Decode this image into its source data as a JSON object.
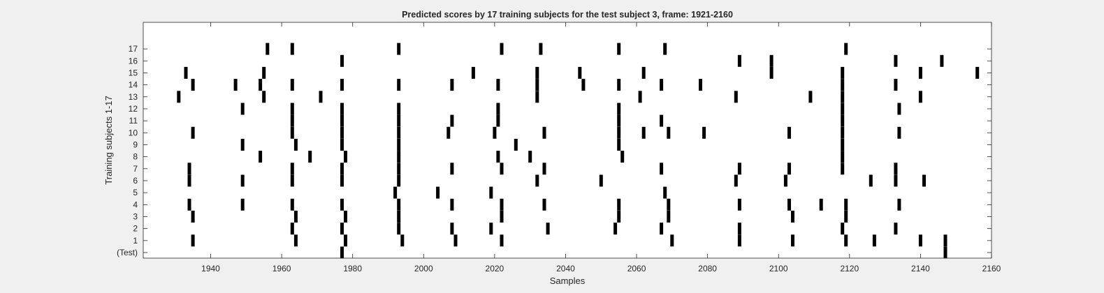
{
  "chart_data": {
    "type": "scatter",
    "marker": "vertical-bar",
    "title": "Predicted scores by 17 training subjects for the test subject 3, frame: 1921-2160",
    "xlabel": "Samples",
    "ylabel": "Training subjects 1-17",
    "xlim": [
      1921,
      2160
    ],
    "xticks": [
      1940,
      1960,
      1980,
      2000,
      2020,
      2040,
      2060,
      2080,
      2100,
      2120,
      2140,
      2160
    ],
    "xtick_labels": [
      "1940",
      "1960",
      "1980",
      "2000",
      "2020",
      "2040",
      "2060",
      "2080",
      "2100",
      "2120",
      "2140",
      "2160"
    ],
    "yticks": [
      "(Test)",
      "1",
      "2",
      "3",
      "4",
      "5",
      "6",
      "7",
      "8",
      "9",
      "10",
      "11",
      "12",
      "13",
      "14",
      "15",
      "16",
      "17"
    ],
    "grid": false,
    "mark_color": "#000000",
    "rows": [
      {
        "label": "(Test)",
        "x": [
          1977,
          2147
        ]
      },
      {
        "label": "1",
        "x": [
          1935,
          1964,
          1978,
          1994,
          2009,
          2022,
          2070,
          2089,
          2104,
          2119,
          2127,
          2140,
          2147
        ]
      },
      {
        "label": "2",
        "x": [
          1963,
          1977,
          1993,
          2008,
          2019,
          2035,
          2054,
          2067,
          2089,
          2118,
          2133
        ]
      },
      {
        "label": "3",
        "x": [
          1935,
          1964,
          1978,
          1993,
          2022,
          2055,
          2069,
          2104,
          2119
        ]
      },
      {
        "label": "4",
        "x": [
          1934,
          1949,
          1963,
          1977,
          1993,
          2008,
          2022,
          2034,
          2055,
          2069,
          2089,
          2103,
          2112,
          2119,
          2134
        ]
      },
      {
        "label": "5",
        "x": [
          1992,
          2004,
          2019,
          2068
        ]
      },
      {
        "label": "6",
        "x": [
          1934,
          1949,
          1963,
          1977,
          1993,
          2032,
          2050,
          2088,
          2102,
          2126,
          2133,
          2141
        ]
      },
      {
        "label": "7",
        "x": [
          1934,
          1963,
          1977,
          1993,
          2008,
          2022,
          2034,
          2067,
          2089,
          2103,
          2118,
          2133
        ]
      },
      {
        "label": "8",
        "x": [
          1954,
          1968,
          1978,
          1993,
          2021,
          2030,
          2056,
          2118
        ]
      },
      {
        "label": "9",
        "x": [
          1949,
          1964,
          1977,
          1993,
          2026,
          2055,
          2118
        ]
      },
      {
        "label": "10",
        "x": [
          1935,
          1963,
          1977,
          1993,
          2007,
          2020,
          2034,
          2055,
          2062,
          2069,
          2079,
          2103,
          2118,
          2134
        ]
      },
      {
        "label": "11",
        "x": [
          1963,
          1977,
          1993,
          2008,
          2021,
          2055,
          2067,
          2118
        ]
      },
      {
        "label": "12",
        "x": [
          1949,
          1963,
          1977,
          1993,
          2021,
          2055,
          2118,
          2134
        ]
      },
      {
        "label": "13",
        "x": [
          1931,
          1955,
          1971,
          2032,
          2061,
          2088,
          2109,
          2118,
          2140
        ]
      },
      {
        "label": "14",
        "x": [
          1935,
          1947,
          1954,
          1963,
          1977,
          1993,
          2008,
          2021,
          2032,
          2045,
          2055,
          2067,
          2078,
          2118,
          2133
        ]
      },
      {
        "label": "15",
        "x": [
          1933,
          1955,
          2014,
          2032,
          2044,
          2062,
          2098,
          2118,
          2140,
          2156
        ]
      },
      {
        "label": "16",
        "x": [
          1977,
          2089,
          2098,
          2133,
          2146
        ]
      },
      {
        "label": "17",
        "x": [
          1956,
          1963,
          1993,
          2022,
          2033,
          2055,
          2068,
          2119
        ]
      }
    ]
  }
}
